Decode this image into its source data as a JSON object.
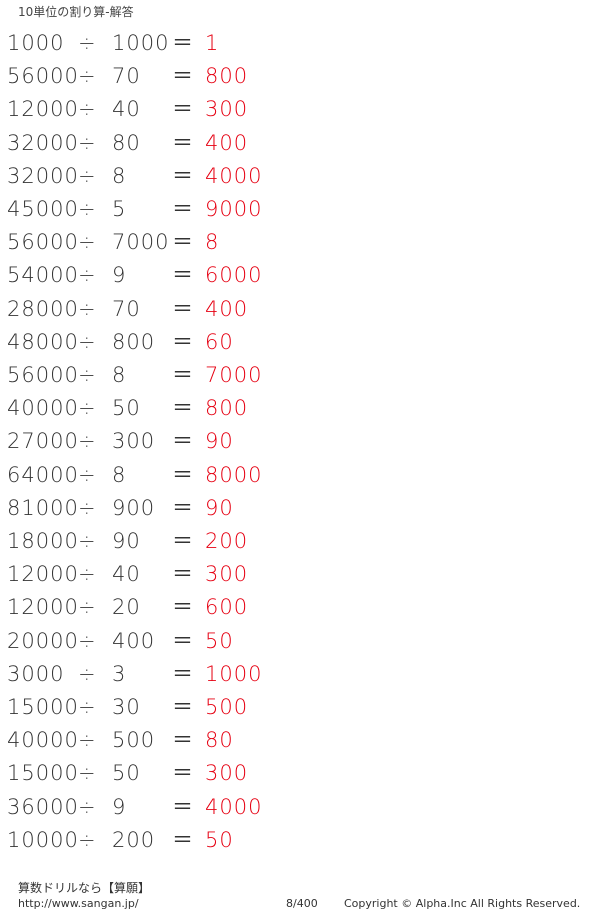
{
  "header": {
    "title": "10単位の割り算-解答"
  },
  "operators": {
    "divide": "÷",
    "equals": "＝"
  },
  "problems": [
    {
      "a": "1000",
      "b": "1000",
      "answer": "1"
    },
    {
      "a": "56000",
      "b": "70",
      "answer": "800"
    },
    {
      "a": "12000",
      "b": "40",
      "answer": "300"
    },
    {
      "a": "32000",
      "b": "80",
      "answer": "400"
    },
    {
      "a": "32000",
      "b": "8",
      "answer": "4000"
    },
    {
      "a": "45000",
      "b": "5",
      "answer": "9000"
    },
    {
      "a": "56000",
      "b": "7000",
      "answer": "8"
    },
    {
      "a": "54000",
      "b": "9",
      "answer": "6000"
    },
    {
      "a": "28000",
      "b": "70",
      "answer": "400"
    },
    {
      "a": "48000",
      "b": "800",
      "answer": "60"
    },
    {
      "a": "56000",
      "b": "8",
      "answer": "7000"
    },
    {
      "a": "40000",
      "b": "50",
      "answer": "800"
    },
    {
      "a": "27000",
      "b": "300",
      "answer": "90"
    },
    {
      "a": "64000",
      "b": "8",
      "answer": "8000"
    },
    {
      "a": "81000",
      "b": "900",
      "answer": "90"
    },
    {
      "a": "18000",
      "b": "90",
      "answer": "200"
    },
    {
      "a": "12000",
      "b": "40",
      "answer": "300"
    },
    {
      "a": "12000",
      "b": "20",
      "answer": "600"
    },
    {
      "a": "20000",
      "b": "400",
      "answer": "50"
    },
    {
      "a": "3000",
      "b": "3",
      "answer": "1000"
    },
    {
      "a": "15000",
      "b": "30",
      "answer": "500"
    },
    {
      "a": "40000",
      "b": "500",
      "answer": "80"
    },
    {
      "a": "15000",
      "b": "50",
      "answer": "300"
    },
    {
      "a": "36000",
      "b": "9",
      "answer": "4000"
    },
    {
      "a": "10000",
      "b": "200",
      "answer": "50"
    }
  ],
  "colors": {
    "answer": "#e60012",
    "text": "#333333"
  },
  "footer": {
    "brand": "算数ドリルなら【算願】",
    "url": "http://www.sangan.jp/",
    "page": "8/400",
    "copyright": "Copyright © Alpha.Inc All Rights Reserved."
  }
}
